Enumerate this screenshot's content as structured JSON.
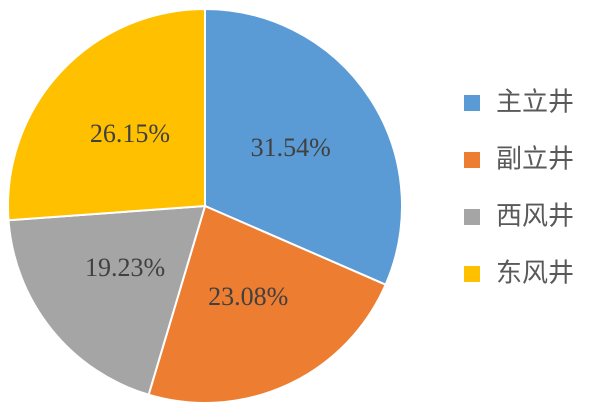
{
  "chart_data": {
    "type": "pie",
    "categories": [
      "主立井",
      "副立井",
      "西风井",
      "东风井"
    ],
    "values": [
      31.54,
      23.08,
      19.23,
      26.15
    ],
    "value_labels": [
      "31.54%",
      "23.08%",
      "19.23%",
      "26.15%"
    ],
    "colors": [
      "#5b9bd5",
      "#ed7d31",
      "#a5a5a5",
      "#ffc000"
    ],
    "legend": "right"
  }
}
